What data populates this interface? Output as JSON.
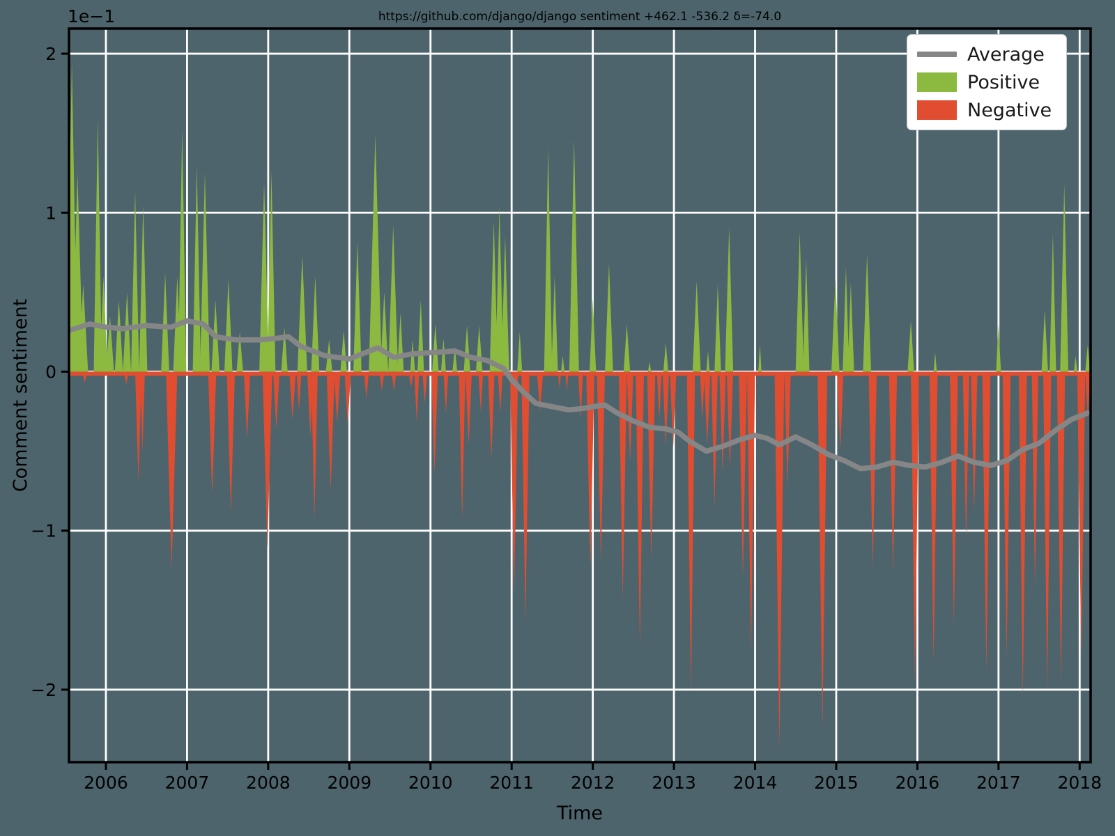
{
  "figure": {
    "background_color": "#4d646c",
    "grid_color": "#ffffff",
    "spine_color": "#000000",
    "text_color": "#000000"
  },
  "legend": {
    "entries": [
      {
        "label": "Average",
        "color": "#868686",
        "type": "line"
      },
      {
        "label": "Positive",
        "color": "#8cba40",
        "type": "patch"
      },
      {
        "label": "Negative",
        "color": "#e04d31",
        "type": "patch"
      }
    ]
  },
  "chart_data": {
    "type": "area",
    "title": "https://github.com/django/django sentiment +462.1 -536.2 δ=-74.0",
    "xlabel": "Time",
    "ylabel": "Comment sentiment",
    "y_offset_label": "1e−1",
    "grid": true,
    "legend_position": "upper right",
    "xlim": [
      2005.545,
      2018.135
    ],
    "ylim": [
      -2.456,
      2.158
    ],
    "x_ticks": [
      2006,
      2007,
      2008,
      2009,
      2010,
      2011,
      2012,
      2013,
      2014,
      2015,
      2016,
      2017,
      2018
    ],
    "y_tick_values": [
      2,
      1,
      0,
      -1,
      -2
    ],
    "y_tick_labels": [
      "2",
      "1",
      "0",
      "−1",
      "−2"
    ],
    "units_note": "all y values in 1e-1 units of comment sentiment",
    "colors": {
      "positive": "#8cba40",
      "negative": "#e04d31",
      "average": "#868686"
    },
    "series": {
      "positive_spikes": [
        [
          2005.58,
          1.94,
          0.07
        ],
        [
          2005.65,
          1.25,
          0.07
        ],
        [
          2005.72,
          0.55,
          0.06
        ],
        [
          2005.9,
          1.59,
          0.05
        ],
        [
          2005.97,
          0.6,
          0.05
        ],
        [
          2006.05,
          0.35,
          0.05
        ],
        [
          2006.16,
          0.45,
          0.05
        ],
        [
          2006.26,
          0.5,
          0.05
        ],
        [
          2006.36,
          1.14,
          0.05
        ],
        [
          2006.46,
          1.05,
          0.05
        ],
        [
          2006.73,
          0.62,
          0.05
        ],
        [
          2006.88,
          0.6,
          0.05
        ],
        [
          2006.94,
          1.53,
          0.05
        ],
        [
          2007.12,
          1.3,
          0.05
        ],
        [
          2007.22,
          1.25,
          0.06
        ],
        [
          2007.35,
          0.45,
          0.05
        ],
        [
          2007.51,
          0.58,
          0.05
        ],
        [
          2007.65,
          0.25,
          0.04
        ],
        [
          2007.95,
          1.19,
          0.06
        ],
        [
          2008.04,
          1.26,
          0.05
        ],
        [
          2008.2,
          0.28,
          0.04
        ],
        [
          2008.42,
          0.73,
          0.06
        ],
        [
          2008.58,
          0.6,
          0.05
        ],
        [
          2008.75,
          0.2,
          0.04
        ],
        [
          2008.93,
          0.26,
          0.04
        ],
        [
          2009.1,
          0.82,
          0.05
        ],
        [
          2009.32,
          1.49,
          0.08
        ],
        [
          2009.43,
          0.5,
          0.05
        ],
        [
          2009.54,
          0.92,
          0.06
        ],
        [
          2009.63,
          0.37,
          0.04
        ],
        [
          2009.78,
          0.2,
          0.03
        ],
        [
          2009.88,
          0.45,
          0.04
        ],
        [
          2010.06,
          0.3,
          0.04
        ],
        [
          2010.16,
          0.21,
          0.03
        ],
        [
          2010.3,
          0.15,
          0.03
        ],
        [
          2010.45,
          0.29,
          0.04
        ],
        [
          2010.6,
          0.29,
          0.04
        ],
        [
          2010.78,
          0.95,
          0.05
        ],
        [
          2010.85,
          1.04,
          0.05
        ],
        [
          2010.92,
          0.85,
          0.05
        ],
        [
          2011.1,
          0.25,
          0.03
        ],
        [
          2011.45,
          1.41,
          0.05
        ],
        [
          2011.53,
          0.6,
          0.04
        ],
        [
          2011.63,
          0.1,
          0.02
        ],
        [
          2011.77,
          1.46,
          0.06
        ],
        [
          2012.0,
          0.46,
          0.04
        ],
        [
          2012.2,
          0.68,
          0.05
        ],
        [
          2012.42,
          0.3,
          0.04
        ],
        [
          2012.7,
          0.06,
          0.02
        ],
        [
          2012.9,
          0.18,
          0.03
        ],
        [
          2013.28,
          0.57,
          0.05
        ],
        [
          2013.42,
          0.13,
          0.02
        ],
        [
          2013.54,
          0.55,
          0.04
        ],
        [
          2013.68,
          0.91,
          0.05
        ],
        [
          2014.06,
          0.17,
          0.02
        ],
        [
          2014.55,
          0.88,
          0.05
        ],
        [
          2014.63,
          0.71,
          0.04
        ],
        [
          2014.99,
          0.58,
          0.05
        ],
        [
          2015.12,
          0.66,
          0.04
        ],
        [
          2015.18,
          0.56,
          0.04
        ],
        [
          2015.38,
          0.74,
          0.05
        ],
        [
          2015.92,
          0.32,
          0.04
        ],
        [
          2016.22,
          0.12,
          0.02
        ],
        [
          2017.0,
          0.3,
          0.03
        ],
        [
          2017.57,
          0.39,
          0.04
        ],
        [
          2017.67,
          0.87,
          0.04
        ],
        [
          2017.81,
          1.18,
          0.05
        ],
        [
          2017.95,
          0.1,
          0.02
        ],
        [
          2018.1,
          0.17,
          0.03
        ]
      ],
      "negative_spikes": [
        [
          2005.74,
          -0.07,
          0.03
        ],
        [
          2006.25,
          -0.08,
          0.03
        ],
        [
          2006.4,
          -0.69,
          0.04
        ],
        [
          2006.45,
          -0.5,
          0.03
        ],
        [
          2006.81,
          -1.24,
          0.07
        ],
        [
          2007.31,
          -0.78,
          0.05
        ],
        [
          2007.54,
          -0.89,
          0.05
        ],
        [
          2007.74,
          -0.42,
          0.04
        ],
        [
          2007.99,
          -1.11,
          0.06
        ],
        [
          2008.1,
          -0.36,
          0.04
        ],
        [
          2008.3,
          -0.3,
          0.04
        ],
        [
          2008.38,
          -0.24,
          0.03
        ],
        [
          2008.52,
          -0.41,
          0.04
        ],
        [
          2008.57,
          -0.93,
          0.04
        ],
        [
          2008.77,
          -0.75,
          0.05
        ],
        [
          2008.85,
          -0.32,
          0.04
        ],
        [
          2008.98,
          -0.33,
          0.04
        ],
        [
          2009.21,
          -0.17,
          0.03
        ],
        [
          2009.4,
          -0.12,
          0.03
        ],
        [
          2009.55,
          -0.12,
          0.03
        ],
        [
          2009.76,
          -0.1,
          0.03
        ],
        [
          2009.83,
          -0.32,
          0.03
        ],
        [
          2009.93,
          -0.2,
          0.03
        ],
        [
          2010.05,
          -0.64,
          0.04
        ],
        [
          2010.19,
          -0.26,
          0.03
        ],
        [
          2010.39,
          -0.93,
          0.04
        ],
        [
          2010.47,
          -0.46,
          0.04
        ],
        [
          2010.62,
          -0.25,
          0.03
        ],
        [
          2010.75,
          -0.55,
          0.04
        ],
        [
          2010.86,
          -0.26,
          0.03
        ],
        [
          2011.03,
          -1.4,
          0.05
        ],
        [
          2011.17,
          -1.58,
          0.05
        ],
        [
          2011.35,
          -0.25,
          0.04
        ],
        [
          2011.59,
          -0.11,
          0.02
        ],
        [
          2011.68,
          -0.12,
          0.02
        ],
        [
          2011.85,
          -0.3,
          0.03
        ],
        [
          2011.97,
          -1.24,
          0.05
        ],
        [
          2012.1,
          -1.2,
          0.05
        ],
        [
          2012.37,
          -1.43,
          0.05
        ],
        [
          2012.46,
          -0.57,
          0.04
        ],
        [
          2012.58,
          -1.73,
          0.05
        ],
        [
          2012.72,
          -1.18,
          0.05
        ],
        [
          2012.82,
          -0.3,
          0.03
        ],
        [
          2012.9,
          -0.47,
          0.04
        ],
        [
          2012.99,
          -0.48,
          0.04
        ],
        [
          2013.21,
          -2.02,
          0.05
        ],
        [
          2013.35,
          -0.3,
          0.03
        ],
        [
          2013.41,
          -0.46,
          0.04
        ],
        [
          2013.5,
          -0.85,
          0.04
        ],
        [
          2013.6,
          -0.63,
          0.04
        ],
        [
          2013.69,
          -0.61,
          0.04
        ],
        [
          2013.85,
          -1.29,
          0.05
        ],
        [
          2013.95,
          -1.76,
          0.05
        ],
        [
          2014.3,
          -2.36,
          0.06
        ],
        [
          2014.4,
          -0.72,
          0.04
        ],
        [
          2014.83,
          -2.24,
          0.06
        ],
        [
          2015.05,
          -0.5,
          0.04
        ],
        [
          2015.45,
          -1.24,
          0.05
        ],
        [
          2015.7,
          -1.26,
          0.05
        ],
        [
          2015.97,
          -1.95,
          0.05
        ],
        [
          2016.2,
          -1.83,
          0.05
        ],
        [
          2016.45,
          -1.6,
          0.05
        ],
        [
          2016.6,
          -1.06,
          0.04
        ],
        [
          2016.7,
          -0.88,
          0.04
        ],
        [
          2016.85,
          -1.89,
          0.05
        ],
        [
          2017.1,
          -1.8,
          0.05
        ],
        [
          2017.3,
          -2.05,
          0.05
        ],
        [
          2017.45,
          -1.36,
          0.04
        ],
        [
          2017.6,
          -2.0,
          0.05
        ],
        [
          2017.77,
          -1.96,
          0.05
        ],
        [
          2018.02,
          -1.81,
          0.05
        ],
        [
          2018.1,
          -0.3,
          0.03
        ]
      ],
      "average": [
        [
          2005.55,
          0.26
        ],
        [
          2005.8,
          0.3
        ],
        [
          2006.0,
          0.28
        ],
        [
          2006.2,
          0.27
        ],
        [
          2006.5,
          0.29
        ],
        [
          2006.8,
          0.28
        ],
        [
          2007.0,
          0.32
        ],
        [
          2007.2,
          0.3
        ],
        [
          2007.35,
          0.22
        ],
        [
          2007.6,
          0.2
        ],
        [
          2007.9,
          0.2
        ],
        [
          2008.1,
          0.21
        ],
        [
          2008.25,
          0.22
        ],
        [
          2008.4,
          0.16
        ],
        [
          2008.7,
          0.1
        ],
        [
          2009.0,
          0.08
        ],
        [
          2009.2,
          0.12
        ],
        [
          2009.35,
          0.15
        ],
        [
          2009.55,
          0.09
        ],
        [
          2009.75,
          0.11
        ],
        [
          2010.0,
          0.12
        ],
        [
          2010.3,
          0.13
        ],
        [
          2010.5,
          0.09
        ],
        [
          2010.7,
          0.07
        ],
        [
          2010.9,
          0.02
        ],
        [
          2011.0,
          -0.05
        ],
        [
          2011.15,
          -0.13
        ],
        [
          2011.3,
          -0.2
        ],
        [
          2011.5,
          -0.22
        ],
        [
          2011.7,
          -0.24
        ],
        [
          2011.9,
          -0.23
        ],
        [
          2012.0,
          -0.22
        ],
        [
          2012.15,
          -0.21
        ],
        [
          2012.3,
          -0.26
        ],
        [
          2012.5,
          -0.31
        ],
        [
          2012.7,
          -0.35
        ],
        [
          2012.9,
          -0.36
        ],
        [
          2013.05,
          -0.38
        ],
        [
          2013.2,
          -0.44
        ],
        [
          2013.4,
          -0.5
        ],
        [
          2013.6,
          -0.47
        ],
        [
          2013.8,
          -0.43
        ],
        [
          2014.0,
          -0.4
        ],
        [
          2014.15,
          -0.42
        ],
        [
          2014.3,
          -0.46
        ],
        [
          2014.5,
          -0.41
        ],
        [
          2014.7,
          -0.46
        ],
        [
          2014.9,
          -0.52
        ],
        [
          2015.1,
          -0.56
        ],
        [
          2015.3,
          -0.61
        ],
        [
          2015.5,
          -0.6
        ],
        [
          2015.7,
          -0.57
        ],
        [
          2015.9,
          -0.59
        ],
        [
          2016.1,
          -0.6
        ],
        [
          2016.3,
          -0.57
        ],
        [
          2016.5,
          -0.53
        ],
        [
          2016.7,
          -0.57
        ],
        [
          2016.9,
          -0.59
        ],
        [
          2017.1,
          -0.56
        ],
        [
          2017.3,
          -0.49
        ],
        [
          2017.5,
          -0.45
        ],
        [
          2017.7,
          -0.37
        ],
        [
          2017.9,
          -0.3
        ],
        [
          2018.1,
          -0.26
        ]
      ],
      "baseline_strip": {
        "y_top": 0.0,
        "y_bottom": -0.026
      }
    }
  }
}
